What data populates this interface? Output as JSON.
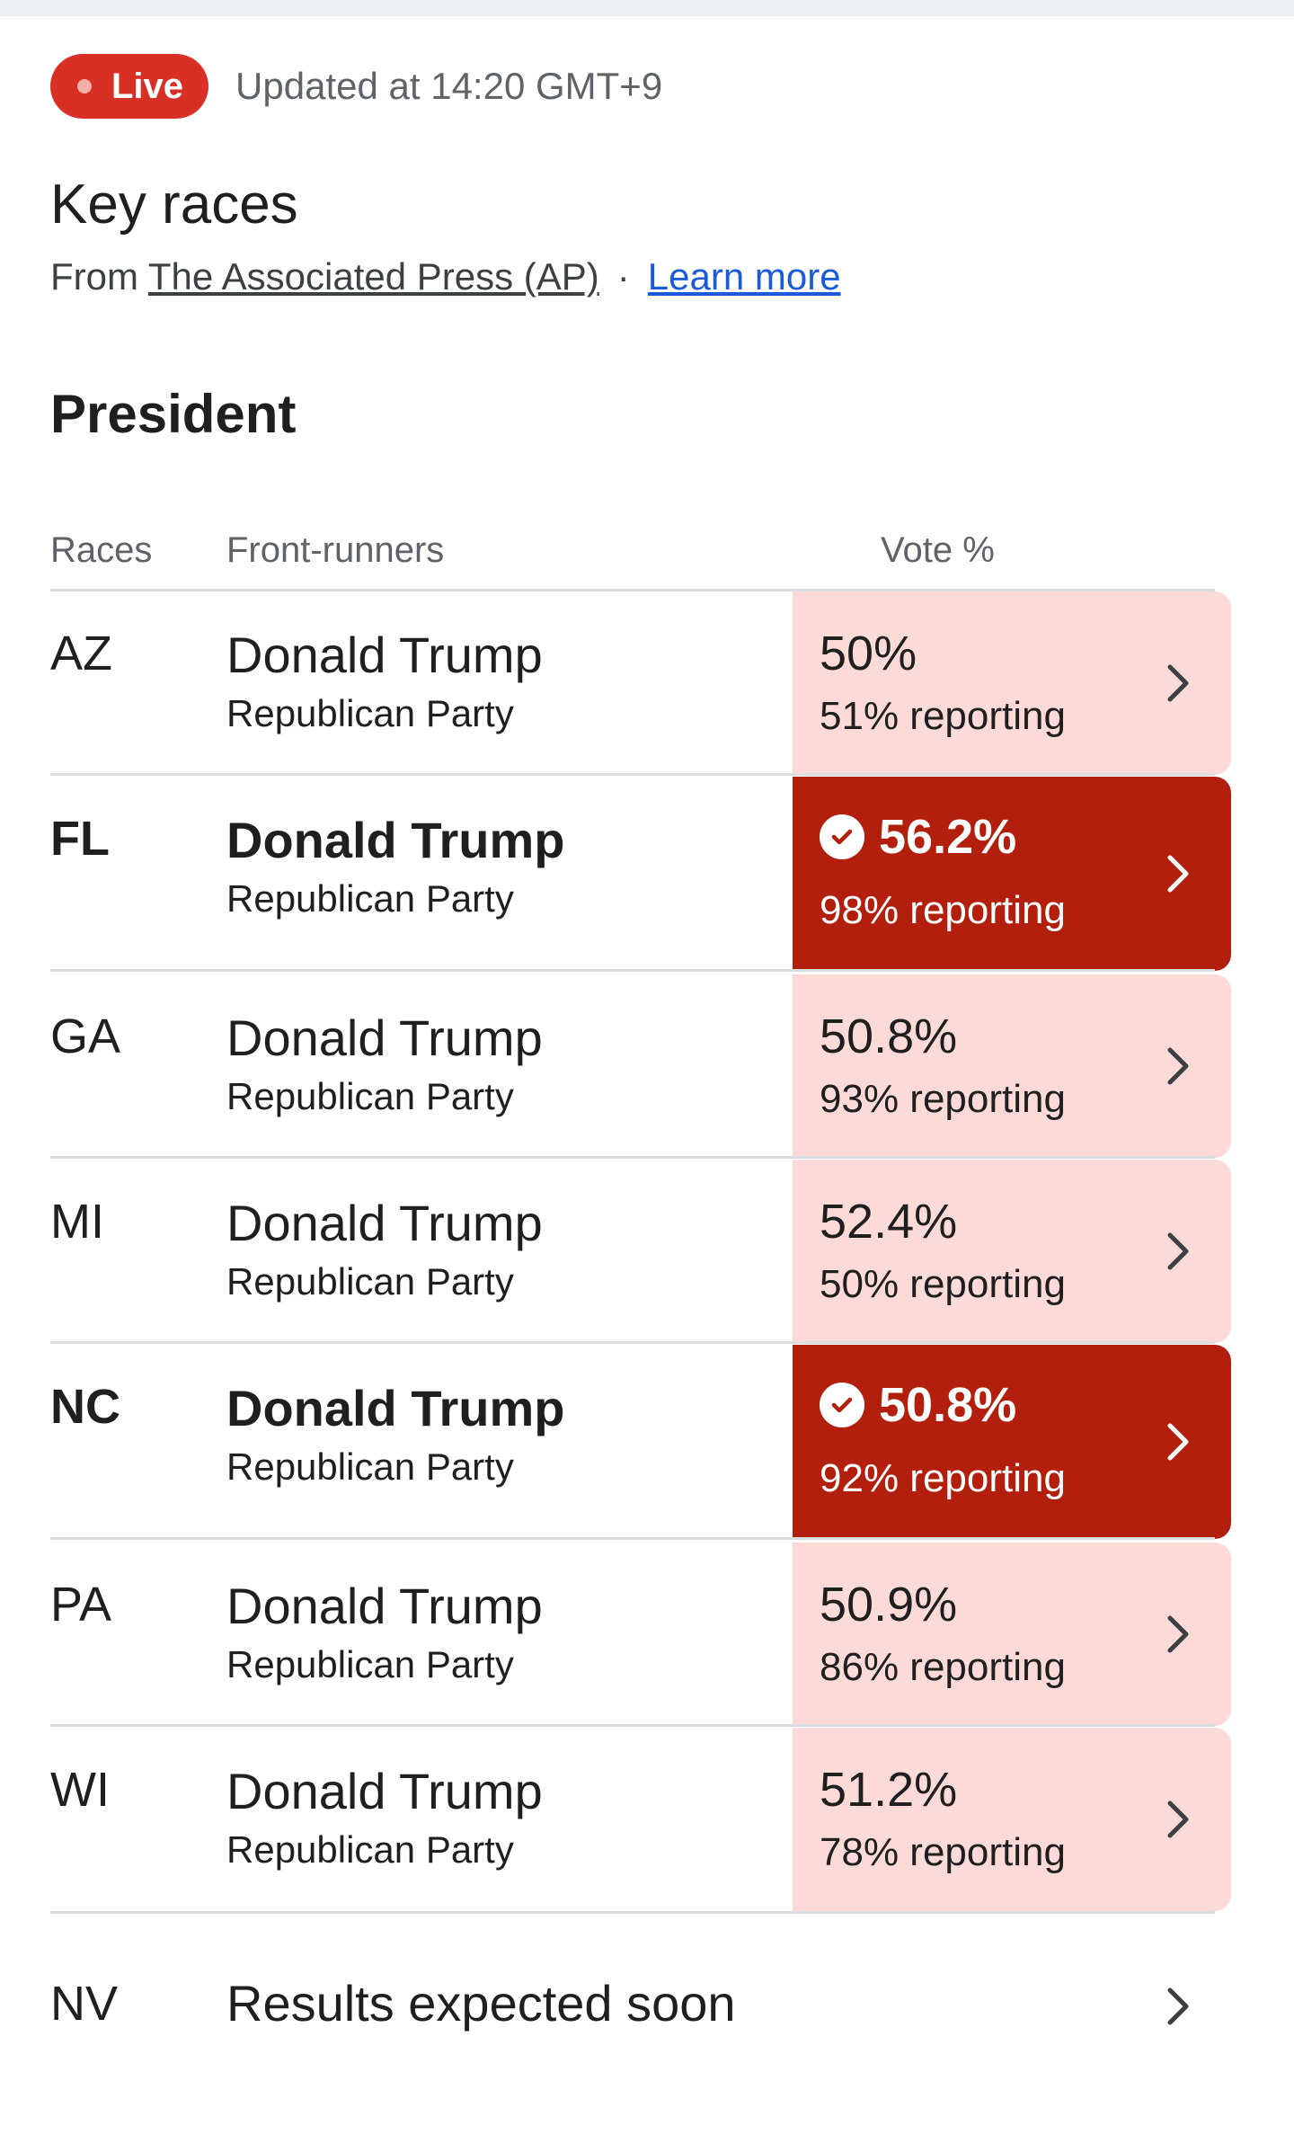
{
  "header": {
    "live_label": "Live",
    "updated_text": "Updated at 14:20 GMT+9"
  },
  "title": "Key races",
  "source": {
    "prefix": "From ",
    "ap_link": "The Associated Press (AP)",
    "separator": "·",
    "learn_more": "Learn more"
  },
  "section_title": "President",
  "columns": {
    "races": "Races",
    "front_runners": "Front-runners",
    "vote": "Vote %"
  },
  "colors": {
    "live_red": "#d93025",
    "winner_red": "#b31f0d",
    "leading_pink": "#fcdad7",
    "link_blue": "#1a5cd7"
  },
  "races": [
    {
      "state": "AZ",
      "candidate": "Donald Trump",
      "party": "Republican Party",
      "vote_pct": "50%",
      "reporting": "51% reporting",
      "called": false
    },
    {
      "state": "FL",
      "candidate": "Donald Trump",
      "party": "Republican Party",
      "vote_pct": "56.2%",
      "reporting": "98% reporting",
      "called": true
    },
    {
      "state": "GA",
      "candidate": "Donald Trump",
      "party": "Republican Party",
      "vote_pct": "50.8%",
      "reporting": "93% reporting",
      "called": false
    },
    {
      "state": "MI",
      "candidate": "Donald Trump",
      "party": "Republican Party",
      "vote_pct": "52.4%",
      "reporting": "50% reporting",
      "called": false
    },
    {
      "state": "NC",
      "candidate": "Donald Trump",
      "party": "Republican Party",
      "vote_pct": "50.8%",
      "reporting": "92% reporting",
      "called": true
    },
    {
      "state": "PA",
      "candidate": "Donald Trump",
      "party": "Republican Party",
      "vote_pct": "50.9%",
      "reporting": "86% reporting",
      "called": false
    },
    {
      "state": "WI",
      "candidate": "Donald Trump",
      "party": "Republican Party",
      "vote_pct": "51.2%",
      "reporting": "78% reporting",
      "called": false
    }
  ],
  "pending": {
    "state": "NV",
    "text": "Results expected soon"
  },
  "icons": {
    "chevron": "chevron-right-icon",
    "check": "check-circle-icon",
    "live_dot": "live-dot-icon"
  }
}
